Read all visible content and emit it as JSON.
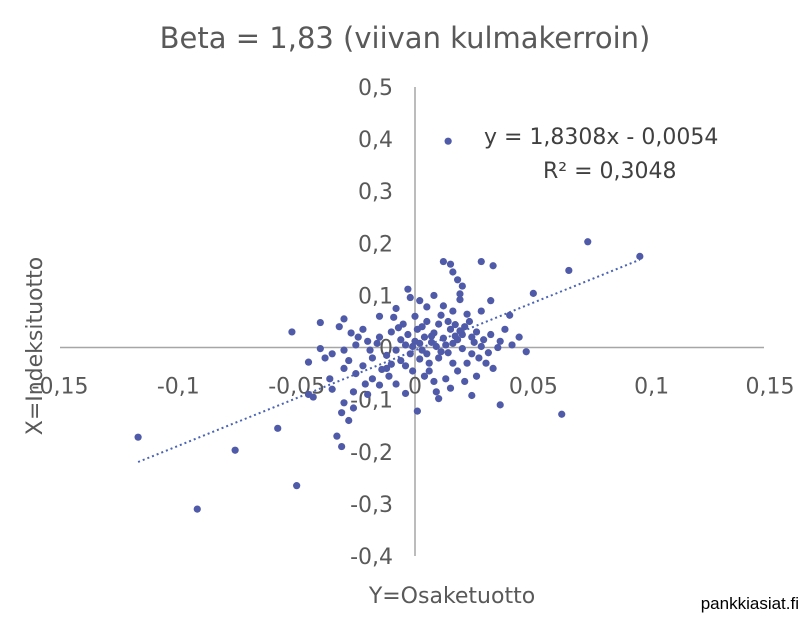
{
  "chart_data": {
    "type": "scatter",
    "title": "Beta = 1,83 (viivan kulmakerroin)",
    "xlabel": "Y=Osaketuotto",
    "ylabel": "X=Indeksituotto",
    "xlim": [
      -0.15,
      0.15
    ],
    "ylim": [
      -0.4,
      0.5
    ],
    "x_ticks": [
      "-0,15",
      "-0,1",
      "-0,05",
      "0",
      "0,05",
      "0,1",
      "0,15"
    ],
    "y_ticks": [
      "-0,4",
      "-0,3",
      "-0,2",
      "-0,1",
      "0",
      "0,1",
      "0,2",
      "0,3",
      "0,4",
      "0,5"
    ],
    "trendline": {
      "slope": 1.8308,
      "intercept": -0.0054,
      "x_range": [
        -0.117,
        0.095
      ]
    },
    "equation": "y = 1,8308x - 0,0054",
    "r_squared": "R² = 0,3048",
    "grid": false,
    "point_color": "#4f5aa8",
    "trend_color": "#4a63b5",
    "points": [
      [
        0.014,
        0.396
      ],
      [
        0.073,
        0.203
      ],
      [
        0.095,
        0.175
      ],
      [
        0.065,
        0.148
      ],
      [
        0.05,
        0.104
      ],
      [
        0.028,
        0.165
      ],
      [
        0.033,
        0.157
      ],
      [
        0.012,
        0.165
      ],
      [
        0.015,
        0.16
      ],
      [
        0.016,
        0.145
      ],
      [
        0.018,
        0.13
      ],
      [
        0.02,
        0.118
      ],
      [
        0.019,
        0.103
      ],
      [
        0.019,
        0.092
      ],
      [
        0.032,
        0.09
      ],
      [
        0.028,
        0.07
      ],
      [
        0.04,
        0.062
      ],
      [
        -0.003,
        0.112
      ],
      [
        -0.002,
        0.096
      ],
      [
        0.002,
        0.09
      ],
      [
        0.005,
        0.078
      ],
      [
        0.008,
        0.1
      ],
      [
        0.012,
        0.08
      ],
      [
        0.016,
        0.07
      ],
      [
        0.022,
        0.064
      ],
      [
        -0.008,
        0.075
      ],
      [
        -0.015,
        0.06
      ],
      [
        -0.03,
        0.055
      ],
      [
        -0.032,
        0.04
      ],
      [
        -0.022,
        0.035
      ],
      [
        -0.04,
        0.048
      ],
      [
        -0.052,
        0.03
      ],
      [
        0.044,
        0.02
      ],
      [
        0.047,
        -0.008
      ],
      [
        0.062,
        -0.128
      ],
      [
        0.036,
        -0.11
      ],
      [
        0.024,
        -0.092
      ],
      [
        -0.04,
        -0.002
      ],
      [
        -0.038,
        -0.02
      ],
      [
        -0.045,
        -0.028
      ],
      [
        -0.03,
        -0.04
      ],
      [
        -0.025,
        -0.05
      ],
      [
        -0.018,
        -0.06
      ],
      [
        -0.012,
        -0.04
      ],
      [
        -0.008,
        -0.07
      ],
      [
        -0.004,
        -0.088
      ],
      [
        0.001,
        -0.122
      ],
      [
        0.009,
        -0.085
      ],
      [
        0.01,
        -0.098
      ],
      [
        0.015,
        -0.078
      ],
      [
        -0.03,
        -0.106
      ],
      [
        -0.026,
        -0.116
      ],
      [
        -0.031,
        -0.125
      ],
      [
        -0.028,
        -0.14
      ],
      [
        -0.033,
        -0.17
      ],
      [
        -0.031,
        -0.19
      ],
      [
        -0.045,
        -0.09
      ],
      [
        -0.058,
        -0.155
      ],
      [
        -0.076,
        -0.197
      ],
      [
        -0.117,
        -0.172
      ],
      [
        -0.092,
        -0.31
      ],
      [
        -0.05,
        -0.265
      ],
      [
        -0.043,
        -0.095
      ],
      [
        -0.035,
        -0.08
      ],
      [
        -0.02,
        -0.09
      ],
      [
        -0.015,
        -0.072
      ],
      [
        0.004,
        -0.055
      ],
      [
        0.006,
        -0.045
      ],
      [
        0.013,
        -0.06
      ],
      [
        0.018,
        -0.045
      ],
      [
        0.022,
        -0.03
      ],
      [
        0.027,
        -0.02
      ],
      [
        0.031,
        -0.01
      ],
      [
        0.035,
        0.0
      ],
      [
        0.025,
        0.01
      ],
      [
        0.02,
        0.025
      ],
      [
        0.015,
        0.035
      ],
      [
        0.01,
        0.045
      ],
      [
        0.005,
        0.05
      ],
      [
        0.0,
        0.06
      ],
      [
        -0.005,
        0.045
      ],
      [
        -0.01,
        0.03
      ],
      [
        -0.015,
        0.02
      ],
      [
        -0.02,
        0.012
      ],
      [
        -0.025,
        0.005
      ],
      [
        -0.03,
        -0.005
      ],
      [
        -0.035,
        -0.012
      ],
      [
        -0.028,
        -0.025
      ],
      [
        -0.022,
        -0.035
      ],
      [
        -0.018,
        -0.02
      ],
      [
        -0.012,
        -0.015
      ],
      [
        -0.008,
        -0.005
      ],
      [
        -0.004,
        0.005
      ],
      [
        0.0,
        0.012
      ],
      [
        0.004,
        0.02
      ],
      [
        0.008,
        0.028
      ],
      [
        0.012,
        0.018
      ],
      [
        0.016,
        0.008
      ],
      [
        0.02,
        -0.002
      ],
      [
        0.024,
        -0.012
      ],
      [
        0.028,
        0.002
      ],
      [
        0.018,
        0.015
      ],
      [
        0.014,
        -0.01
      ],
      [
        0.01,
        -0.02
      ],
      [
        0.006,
        -0.03
      ],
      [
        0.002,
        -0.022
      ],
      [
        -0.002,
        -0.012
      ],
      [
        -0.006,
        -0.025
      ],
      [
        -0.01,
        -0.032
      ],
      [
        -0.014,
        -0.042
      ],
      [
        -0.006,
        0.015
      ],
      [
        -0.003,
        0.025
      ],
      [
        0.001,
        0.035
      ],
      [
        0.003,
        0.04
      ],
      [
        0.007,
        0.01
      ],
      [
        0.009,
        0.002
      ],
      [
        0.011,
        -0.008
      ],
      [
        0.013,
        0.005
      ],
      [
        0.017,
        0.022
      ],
      [
        0.021,
        0.04
      ],
      [
        0.023,
        0.05
      ],
      [
        0.026,
        0.03
      ],
      [
        0.029,
        0.015
      ],
      [
        0.032,
        0.025
      ],
      [
        0.036,
        0.012
      ],
      [
        0.038,
        0.035
      ],
      [
        0.041,
        0.005
      ],
      [
        0.003,
        -0.005
      ],
      [
        -0.001,
        0.002
      ],
      [
        0.002,
        0.008
      ],
      [
        0.005,
        -0.012
      ],
      [
        0.007,
        0.022
      ],
      [
        -0.004,
        -0.035
      ],
      [
        -0.016,
        0.008
      ],
      [
        -0.019,
        -0.005
      ],
      [
        -0.024,
        0.02
      ],
      [
        -0.027,
        0.028
      ],
      [
        -0.009,
        0.058
      ],
      [
        -0.007,
        0.038
      ],
      [
        0.011,
        0.062
      ],
      [
        0.014,
        0.05
      ],
      [
        0.017,
        0.044
      ],
      [
        0.019,
        0.032
      ],
      [
        0.024,
        0.02
      ],
      [
        0.03,
        -0.03
      ],
      [
        0.033,
        -0.04
      ],
      [
        0.026,
        -0.055
      ],
      [
        0.021,
        -0.065
      ],
      [
        0.016,
        -0.03
      ],
      [
        0.008,
        -0.065
      ],
      [
        -0.001,
        -0.045
      ],
      [
        -0.011,
        -0.055
      ],
      [
        -0.021,
        -0.07
      ],
      [
        -0.026,
        -0.085
      ],
      [
        -0.036,
        -0.06
      ]
    ]
  },
  "source_label": "pankkiasiat.fi"
}
